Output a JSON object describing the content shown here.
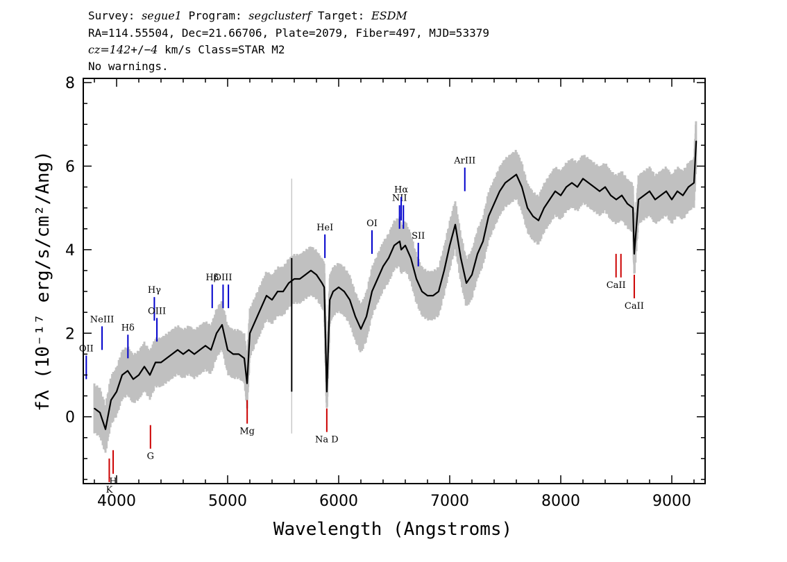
{
  "header": {
    "survey_prefix": "Survey: ",
    "survey": "segue1",
    "program_prefix": " Program: ",
    "program": "segclusterf",
    "target_prefix": " Target: ",
    "target": "ESDM",
    "line2": "RA=114.55504, Dec=21.66706, Plate=2079, Fiber=497, MJD=53379",
    "cz_value": "cz=142",
    "cz_pm": "+/−",
    "cz_err": "4",
    "cz_rest": " km/s Class=STAR M2",
    "line4": "No warnings."
  },
  "chart_data": {
    "type": "line",
    "xlabel": "Wavelength (Angstroms)",
    "ylabel": "fλ (10⁻¹⁷ erg/s/cm²/Ang)",
    "xlim": [
      3700,
      9300
    ],
    "ylim": [
      -1.6,
      8.1
    ],
    "xticks": [
      4000,
      5000,
      6000,
      7000,
      8000,
      9000
    ],
    "yticks": [
      0,
      2,
      4,
      6,
      8
    ],
    "colors": {
      "spectrum": "#000000",
      "error_band": "#c0c0c0",
      "emission_line": "#0000cc",
      "absorption_line": "#cc0000",
      "sky_line": "#000000"
    },
    "series": [
      {
        "x": [
          3800,
          3850,
          3900,
          3950,
          4000,
          4050,
          4100,
          4150,
          4200,
          4250,
          4300,
          4350,
          4400,
          4450,
          4500,
          4550,
          4600,
          4650,
          4700,
          4750,
          4800,
          4850,
          4900,
          4950,
          5000,
          5050,
          5100,
          5150,
          5175,
          5200,
          5250,
          5300,
          5350,
          5400,
          5450,
          5500,
          5550,
          5600,
          5650,
          5700,
          5750,
          5800,
          5850,
          5870,
          5893,
          5920,
          5950,
          6000,
          6050,
          6100,
          6150,
          6200,
          6250,
          6300,
          6350,
          6400,
          6450,
          6500,
          6550,
          6563,
          6600,
          6650,
          6700,
          6750,
          6800,
          6850,
          6900,
          6950,
          7000,
          7050,
          7100,
          7150,
          7200,
          7250,
          7300,
          7350,
          7400,
          7450,
          7500,
          7550,
          7600,
          7650,
          7700,
          7750,
          7800,
          7850,
          7900,
          7950,
          8000,
          8050,
          8100,
          8150,
          8200,
          8250,
          8300,
          8350,
          8400,
          8450,
          8500,
          8550,
          8600,
          8650,
          8662,
          8700,
          8750,
          8800,
          8850,
          8900,
          8950,
          9000,
          9050,
          9100,
          9150,
          9200,
          9220
        ],
        "y": [
          0.2,
          0.1,
          -0.3,
          0.4,
          0.6,
          1.0,
          1.1,
          0.9,
          1.0,
          1.2,
          1.0,
          1.3,
          1.3,
          1.4,
          1.5,
          1.6,
          1.5,
          1.6,
          1.5,
          1.6,
          1.7,
          1.6,
          2.0,
          2.2,
          1.6,
          1.5,
          1.5,
          1.4,
          0.8,
          2.0,
          2.3,
          2.6,
          2.9,
          2.8,
          3.0,
          3.0,
          3.2,
          3.3,
          3.3,
          3.4,
          3.5,
          3.4,
          3.2,
          3.1,
          0.6,
          2.8,
          3.0,
          3.1,
          3.0,
          2.8,
          2.4,
          2.1,
          2.4,
          3.0,
          3.3,
          3.6,
          3.8,
          4.1,
          4.2,
          4.0,
          4.1,
          3.8,
          3.3,
          3.0,
          2.9,
          2.9,
          3.0,
          3.5,
          4.1,
          4.6,
          3.8,
          3.2,
          3.4,
          3.9,
          4.2,
          4.8,
          5.1,
          5.4,
          5.6,
          5.7,
          5.8,
          5.5,
          5.0,
          4.8,
          4.7,
          5.0,
          5.2,
          5.4,
          5.3,
          5.5,
          5.6,
          5.5,
          5.7,
          5.6,
          5.5,
          5.4,
          5.5,
          5.3,
          5.2,
          5.3,
          5.1,
          5.0,
          3.9,
          5.2,
          5.3,
          5.4,
          5.2,
          5.3,
          5.4,
          5.2,
          5.4,
          5.3,
          5.5,
          5.6,
          6.6
        ]
      }
    ],
    "annotations": [
      {
        "label": "OII",
        "x": 3727,
        "y": 0.9,
        "kind": "emission"
      },
      {
        "label": "NeIII",
        "x": 3869,
        "y": 1.6,
        "kind": "emission"
      },
      {
        "label": "Hδ",
        "x": 4102,
        "y": 1.4,
        "kind": "emission"
      },
      {
        "label": "Hγ",
        "x": 4340,
        "y": 2.3,
        "kind": "emission"
      },
      {
        "label": "OIII",
        "x": 4363,
        "y": 1.8,
        "kind": "emission"
      },
      {
        "label": "Hβ",
        "x": 4861,
        "y": 2.6,
        "kind": "emission"
      },
      {
        "label": "OIII",
        "x": 4959,
        "y": 2.6,
        "kind": "emission"
      },
      {
        "label": "OIII",
        "x": 5007,
        "y": 2.6,
        "kind": "emission"
      },
      {
        "label": "HeI",
        "x": 5876,
        "y": 3.8,
        "kind": "emission"
      },
      {
        "label": "OI",
        "x": 6300,
        "y": 3.9,
        "kind": "emission"
      },
      {
        "label": "NII",
        "x": 6548,
        "y": 4.5,
        "kind": "emission"
      },
      {
        "label": "Hα",
        "x": 6563,
        "y": 4.7,
        "kind": "emission"
      },
      {
        "label": "NII",
        "x": 6583,
        "y": 4.5,
        "kind": "emission"
      },
      {
        "label": "SII",
        "x": 6717,
        "y": 3.6,
        "kind": "emission"
      },
      {
        "label": "ArIII",
        "x": 7136,
        "y": 5.4,
        "kind": "emission"
      },
      {
        "label": "K",
        "x": 3934,
        "y": -1.0,
        "kind": "absorption"
      },
      {
        "label": "H",
        "x": 3969,
        "y": -0.8,
        "kind": "absorption"
      },
      {
        "label": "G",
        "x": 4305,
        "y": -0.2,
        "kind": "absorption"
      },
      {
        "label": "Mg",
        "x": 5176,
        "y": 0.4,
        "kind": "absorption"
      },
      {
        "label": "Na D",
        "x": 5893,
        "y": 0.2,
        "kind": "absorption"
      },
      {
        "label": "CaII",
        "x": 8498,
        "y": 3.9,
        "kind": "absorption"
      },
      {
        "label": "CaII",
        "x": 8542,
        "y": 3.9,
        "kind": "absorption"
      },
      {
        "label": "CaII",
        "x": 8662,
        "y": 3.4,
        "kind": "absorption"
      }
    ]
  }
}
